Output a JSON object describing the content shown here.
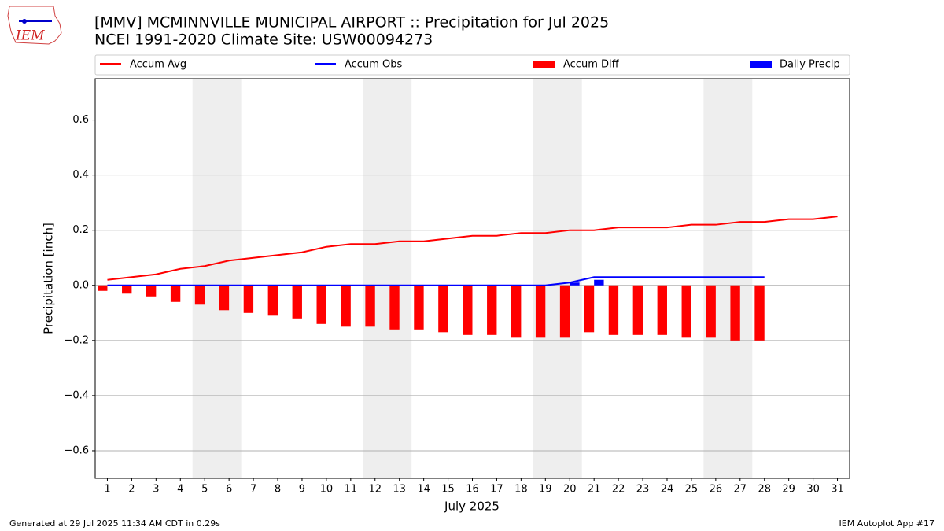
{
  "logo_text": "IEM",
  "footer_left": "Generated at 29 Jul 2025 11:34 AM CDT in 0.29s",
  "footer_right": "IEM Autoplot App #17",
  "chart_data": {
    "type": "bar",
    "title": "[MMV] MCMINNVILLE MUNICIPAL AIRPORT :: Precipitation for Jul 2025",
    "subtitle": "NCEI 1991-2020 Climate Site: USW00094273",
    "y_label": "Precipitation [inch]",
    "x_label": "July 2025",
    "x": [
      1,
      2,
      3,
      4,
      5,
      6,
      7,
      8,
      9,
      10,
      11,
      12,
      13,
      14,
      15,
      16,
      17,
      18,
      19,
      20,
      21,
      22,
      23,
      24,
      25,
      26,
      27,
      28,
      29,
      30,
      31
    ],
    "xlim": [
      0.5,
      31.5
    ],
    "xticks": [
      1,
      2,
      3,
      4,
      5,
      6,
      7,
      8,
      9,
      10,
      11,
      12,
      13,
      14,
      15,
      16,
      17,
      18,
      19,
      20,
      21,
      22,
      23,
      24,
      25,
      26,
      27,
      28,
      29,
      30,
      31
    ],
    "ylim": [
      -0.7,
      0.75
    ],
    "yticks": [
      {
        "value": -0.6,
        "label": "−0.6"
      },
      {
        "value": -0.4,
        "label": "−0.4"
      },
      {
        "value": -0.2,
        "label": "−0.2"
      },
      {
        "value": 0,
        "label": "0.0"
      },
      0.2,
      0.4,
      0.6
    ],
    "grid": true,
    "weekends": [
      [
        4.5,
        6.5
      ],
      [
        11.5,
        13.5
      ],
      [
        18.5,
        20.5
      ],
      [
        25.5,
        27.5
      ]
    ],
    "series": [
      {
        "name": "Accum Avg",
        "kind": "line",
        "color": "#ff0000",
        "values": [
          0.02,
          0.03,
          0.04,
          0.06,
          0.07,
          0.09,
          0.1,
          0.11,
          0.12,
          0.14,
          0.15,
          0.15,
          0.16,
          0.16,
          0.17,
          0.18,
          0.18,
          0.19,
          0.19,
          0.2,
          0.2,
          0.21,
          0.21,
          0.21,
          0.22,
          0.22,
          0.23,
          0.23,
          0.24,
          0.24,
          0.25
        ]
      },
      {
        "name": "Accum Obs",
        "kind": "line",
        "color": "#0000ff",
        "values": [
          0,
          0,
          0,
          0,
          0,
          0,
          0,
          0,
          0,
          0,
          0,
          0,
          0,
          0,
          0,
          0,
          0,
          0,
          0,
          0.01,
          0.03,
          0.03,
          0.03,
          0.03,
          0.03,
          0.03,
          0.03,
          0.03,
          null,
          null,
          null
        ]
      },
      {
        "name": "Accum Diff",
        "kind": "bar",
        "color": "#ff0000",
        "values": [
          -0.02,
          -0.03,
          -0.04,
          -0.06,
          -0.07,
          -0.09,
          -0.1,
          -0.11,
          -0.12,
          -0.14,
          -0.15,
          -0.15,
          -0.16,
          -0.16,
          -0.17,
          -0.18,
          -0.18,
          -0.19,
          -0.19,
          -0.19,
          -0.17,
          -0.18,
          -0.18,
          -0.18,
          -0.19,
          -0.19,
          -0.2,
          -0.2,
          null,
          null,
          null
        ]
      },
      {
        "name": "Daily Precip",
        "kind": "bar",
        "color": "#0000ff",
        "values": [
          0,
          0,
          0,
          0,
          0,
          0,
          0,
          0,
          0,
          0,
          0,
          0,
          0,
          0,
          0,
          0,
          0,
          0,
          0,
          0.01,
          0.02,
          0,
          0,
          0,
          0,
          0,
          0,
          0,
          null,
          null,
          null
        ]
      }
    ]
  }
}
